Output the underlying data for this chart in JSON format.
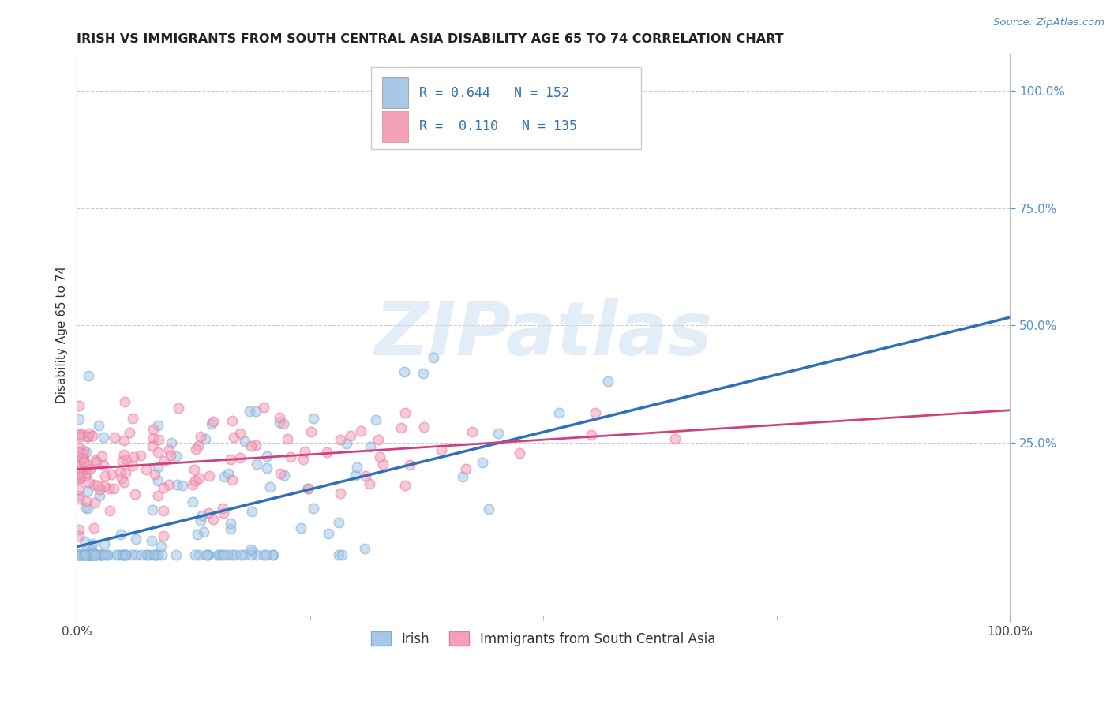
{
  "title": "IRISH VS IMMIGRANTS FROM SOUTH CENTRAL ASIA DISABILITY AGE 65 TO 74 CORRELATION CHART",
  "source": "Source: ZipAtlas.com",
  "ylabel": "Disability Age 65 to 74",
  "irish_R": 0.644,
  "irish_N": 152,
  "imm_R": 0.11,
  "imm_N": 135,
  "blue_scatter_color": "#a8c8e8",
  "pink_scatter_color": "#f4a0b8",
  "blue_edge_color": "#7bafd4",
  "pink_edge_color": "#e87aa0",
  "blue_line_color": "#3070b8",
  "pink_line_color": "#d04080",
  "watermark_color": "#c8ddf0",
  "watermark_text": "ZIPatlas",
  "grid_color": "#cccccc",
  "right_tick_color": "#5090d0",
  "xlim": [
    0.0,
    1.0
  ],
  "ylim": [
    -0.12,
    1.08
  ],
  "right_yticks": [
    0.25,
    0.5,
    0.75,
    1.0
  ],
  "right_ytick_labels": [
    "25.0%",
    "50.0%",
    "75.0%",
    "100.0%"
  ],
  "hgrid_levels": [
    0.25,
    0.5,
    0.75,
    1.0
  ],
  "seed": 77,
  "bg_color": "#ffffff"
}
